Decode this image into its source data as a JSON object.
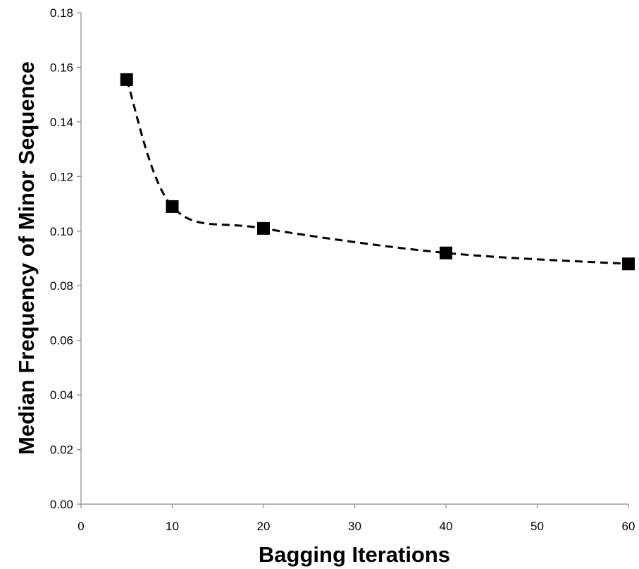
{
  "chart_data": {
    "type": "line",
    "title": "",
    "xlabel": "Bagging Iterations",
    "ylabel": "Median Frequency of Minor Sequence",
    "xlim": [
      0,
      60
    ],
    "ylim": [
      0,
      0.18
    ],
    "x_ticks": [
      "0",
      "10",
      "20",
      "30",
      "40",
      "50",
      "60"
    ],
    "y_ticks": [
      "0.00",
      "0.02",
      "0.04",
      "0.06",
      "0.08",
      "0.10",
      "0.12",
      "0.14",
      "0.16",
      "0.18"
    ],
    "grid": false,
    "legend": false,
    "series": [
      {
        "x": [
          5,
          10,
          20,
          40,
          60
        ],
        "y": [
          0.1555,
          0.109,
          0.101,
          0.092,
          0.088
        ],
        "line_style": "dashed",
        "marker": "square",
        "color": "#000000"
      }
    ]
  }
}
